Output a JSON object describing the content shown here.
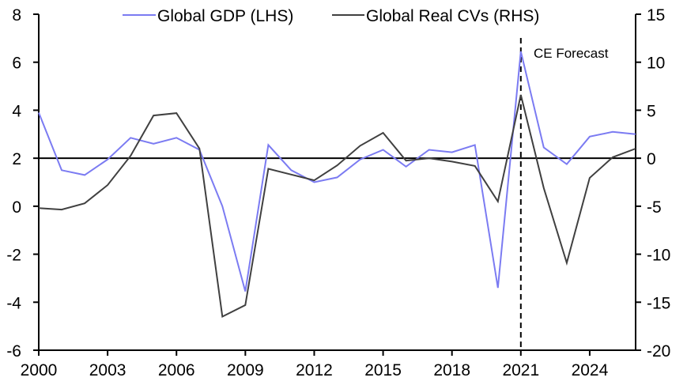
{
  "chart_data": {
    "type": "line",
    "title": "",
    "xlabel": "",
    "ylabel_left": "",
    "ylabel_right": "",
    "x": [
      2000,
      2001,
      2002,
      2003,
      2004,
      2005,
      2006,
      2007,
      2008,
      2009,
      2010,
      2011,
      2012,
      2013,
      2014,
      2015,
      2016,
      2017,
      2018,
      2019,
      2020,
      2021,
      2022,
      2023,
      2024,
      2025,
      2026
    ],
    "x_ticks": [
      "2000",
      "2003",
      "2006",
      "2009",
      "2012",
      "2015",
      "2018",
      "2021",
      "2024"
    ],
    "x_tick_values": [
      2000,
      2003,
      2006,
      2009,
      2012,
      2015,
      2018,
      2021,
      2024
    ],
    "xlim": [
      2000,
      2026
    ],
    "ylim_left": [
      -6,
      8
    ],
    "y_ticks_left": [
      "-6",
      "-4",
      "-2",
      "0",
      "2",
      "4",
      "6",
      "8"
    ],
    "y_tick_values_left": [
      -6,
      -4,
      -2,
      0,
      2,
      4,
      6,
      8
    ],
    "ylim_right": [
      -20,
      15
    ],
    "y_ticks_right": [
      "-20",
      "-15",
      "-10",
      "-5",
      "0",
      "5",
      "10",
      "15"
    ],
    "y_tick_values_right": [
      -20,
      -15,
      -10,
      -5,
      0,
      5,
      10,
      15
    ],
    "zero_line_right": 0,
    "grid": false,
    "legend_position": "top-center",
    "series": [
      {
        "name": "Global GDP (LHS)",
        "axis": "left",
        "color": "#7b7bf2",
        "values": [
          3.9,
          1.5,
          1.3,
          1.95,
          2.85,
          2.6,
          2.85,
          2.35,
          0.0,
          -3.55,
          2.55,
          1.5,
          1.0,
          1.2,
          1.95,
          2.35,
          1.65,
          2.35,
          2.25,
          2.55,
          -3.4,
          6.45,
          2.45,
          1.75,
          2.9,
          3.1,
          3.0
        ]
      },
      {
        "name": "Global Real CVs (RHS)",
        "axis": "right",
        "color": "#404040",
        "values": [
          -5.2,
          -5.35,
          -4.7,
          -2.8,
          0.25,
          4.45,
          4.7,
          1.0,
          -16.5,
          -15.3,
          -1.1,
          -1.7,
          -2.3,
          -0.75,
          1.3,
          2.65,
          -0.25,
          0.0,
          -0.35,
          -0.8,
          -4.5,
          6.6,
          -3.1,
          -10.9,
          -2.05,
          0.1,
          1.0
        ]
      }
    ],
    "annotations": [
      {
        "text": "CE Forecast",
        "x": 2021,
        "type": "vertical-dashed-line"
      }
    ]
  }
}
